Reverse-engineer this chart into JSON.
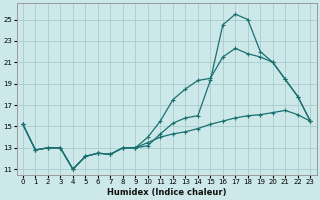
{
  "xlabel": "Humidex (Indice chaleur)",
  "background_color": "#cce8e8",
  "grid_color": "#aacccc",
  "line_color": "#1a7070",
  "xlim": [
    -0.5,
    23.5
  ],
  "ylim": [
    10.5,
    26.5
  ],
  "xticks": [
    0,
    1,
    2,
    3,
    4,
    5,
    6,
    7,
    8,
    9,
    10,
    11,
    12,
    13,
    14,
    15,
    16,
    17,
    18,
    19,
    20,
    21,
    22,
    23
  ],
  "yticks": [
    11,
    13,
    15,
    17,
    19,
    21,
    23,
    25
  ],
  "line_zigzag": [
    15.2,
    12.8,
    13.0,
    13.0,
    11.0,
    12.2,
    12.5,
    12.4,
    13.0,
    13.0,
    13.2,
    14.3,
    15.3,
    15.8,
    16.0,
    19.3,
    24.5,
    25.5,
    25.0,
    22.0,
    21.0,
    19.4,
    17.8,
    15.5
  ],
  "line_diag_high": [
    15.2,
    12.8,
    13.0,
    13.0,
    11.0,
    12.2,
    12.5,
    12.4,
    13.0,
    13.0,
    14.0,
    15.5,
    17.5,
    18.5,
    19.3,
    19.5,
    21.5,
    22.3,
    21.8,
    21.5,
    21.0,
    19.4,
    17.8,
    15.5
  ],
  "line_flat_rise": [
    15.2,
    12.8,
    13.0,
    13.0,
    11.0,
    12.2,
    12.5,
    12.4,
    13.0,
    13.0,
    13.5,
    14.0,
    14.3,
    14.5,
    14.8,
    15.2,
    15.5,
    15.8,
    16.0,
    16.1,
    16.3,
    16.5,
    16.1,
    15.5
  ]
}
